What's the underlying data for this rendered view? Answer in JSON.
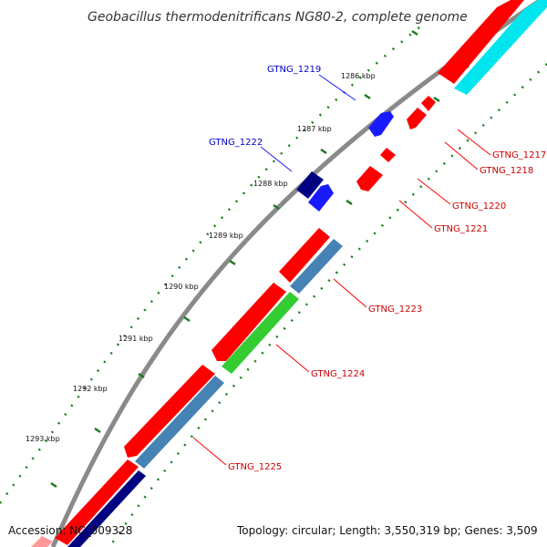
{
  "title": "Geobacillus thermodenitrificans NG80-2, complete genome",
  "footer": {
    "accession": "Accession: NC_009328",
    "summary": "Topology: circular; Length: 3,550,319 bp; Genes: 3,509"
  },
  "scale_labels": [
    "1286 kbp",
    "1287 kbp",
    "1288 kbp",
    "1289 kbp",
    "1290 kbp",
    "1291 kbp",
    "1292 kbp",
    "1293 kbp"
  ],
  "genes": {
    "plus_strand": [
      "GTNG_1219",
      "GTNG_1222"
    ],
    "minus_strand": [
      "GTNG_1217",
      "GTNG_1218",
      "GTNG_1220",
      "GTNG_1221",
      "GTNG_1223",
      "GTNG_1224",
      "GTNG_1225"
    ]
  },
  "colors": {
    "backbone": "#8a8a8a",
    "cds": "#ff0000",
    "gene_forward": "#1a1aff",
    "gene_forward_dark": "#000080",
    "gene_steelblue": "#4682b4",
    "gene_cyan": "#00e5ee",
    "gene_green": "#33cc33",
    "forward_label": "#0000cc",
    "reverse_label": "#cc0000",
    "tick": "#1e7b1e"
  }
}
